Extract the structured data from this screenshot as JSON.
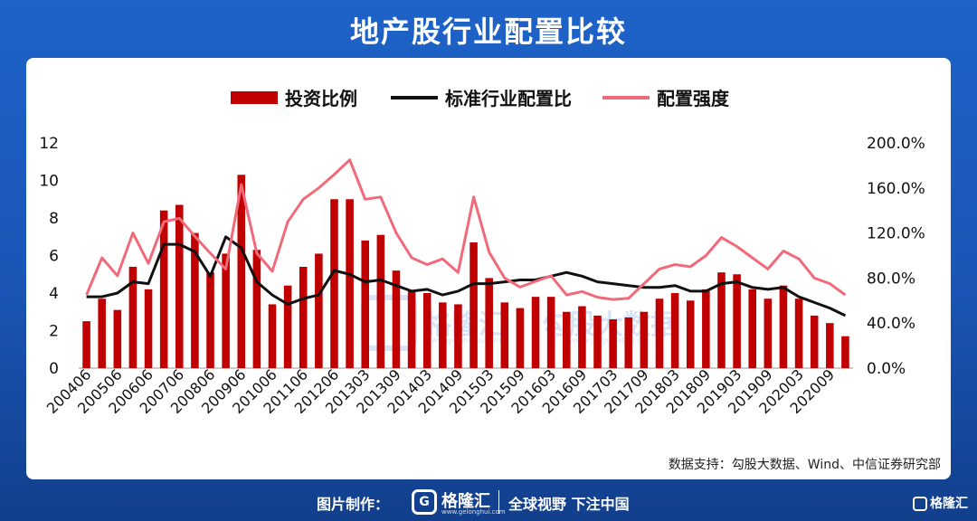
{
  "page": {
    "title": "地产股行业配置比较",
    "source_note": "数据支持：勾股大数据、Wind、中信证券研究部",
    "watermark": {
      "brand": "格隆汇",
      "brand_url": "www.gelonghui.com",
      "product": "勾股大数据",
      "product_url": "www.gogudata.com"
    },
    "footer": {
      "label": "图片制作：",
      "brand": "格隆汇",
      "brand_url": "www.gelonghui.com",
      "slogan": "全球视野 下注中国",
      "corner": "格隆汇"
    }
  },
  "chart_data": {
    "type": "bar",
    "legend": [
      {
        "name": "投资比例",
        "kind": "bar",
        "color": "#c00000"
      },
      {
        "name": "标准行业配置比",
        "kind": "line",
        "color": "#111111"
      },
      {
        "name": "配置强度",
        "kind": "line",
        "color": "#f06a7a"
      }
    ],
    "legend_placement": "top",
    "y_left": {
      "min": 0,
      "max": 12,
      "ticks": [
        "0",
        "2",
        "4",
        "6",
        "8",
        "10",
        "12"
      ]
    },
    "y_right": {
      "min": 0,
      "max": 200,
      "ticks": [
        "0.0%",
        "40.0%",
        "80.0%",
        "120.0%",
        "160.0%",
        "200.0%"
      ]
    },
    "x_tick_labels": [
      "200406",
      "200506",
      "200606",
      "200706",
      "200806",
      "200906",
      "201006",
      "201106",
      "201206",
      "201303",
      "201309",
      "201403",
      "201409",
      "201503",
      "201509",
      "201603",
      "201609",
      "201703",
      "201709",
      "201803",
      "201809",
      "201903",
      "201909",
      "202003",
      "202009"
    ],
    "series": [
      {
        "name": "投资比例",
        "axis": "left",
        "values": [
          2.5,
          3.7,
          3.1,
          5.4,
          4.2,
          8.4,
          8.7,
          7.2,
          5.1,
          6.1,
          10.3,
          6.3,
          3.4,
          4.4,
          5.4,
          6.1,
          9.0,
          9.0,
          6.8,
          7.1,
          5.2,
          4.1,
          4.0,
          3.5,
          3.4,
          6.7,
          4.8,
          3.5,
          3.2,
          3.8,
          3.8,
          3.0,
          3.3,
          2.8,
          2.6,
          2.7,
          3.0,
          3.7,
          4.0,
          3.6,
          4.2,
          5.1,
          5.0,
          4.2,
          3.7,
          4.4,
          3.7,
          2.8,
          2.4,
          1.7
        ]
      },
      {
        "name": "标准行业配置比",
        "axis": "left",
        "values": [
          3.8,
          3.8,
          4.0,
          4.6,
          4.5,
          6.6,
          6.6,
          6.2,
          4.9,
          7.0,
          6.4,
          4.6,
          3.9,
          3.4,
          3.7,
          3.9,
          5.2,
          5.0,
          4.6,
          4.7,
          4.4,
          4.1,
          4.2,
          3.9,
          4.1,
          4.5,
          4.5,
          4.6,
          4.7,
          4.7,
          4.9,
          5.1,
          4.9,
          4.6,
          4.5,
          4.4,
          4.3,
          4.3,
          4.4,
          4.1,
          4.1,
          4.5,
          4.6,
          4.3,
          4.2,
          4.3,
          3.8,
          3.5,
          3.2,
          2.8
        ]
      },
      {
        "name": "配置强度",
        "axis": "right",
        "values": [
          65,
          98,
          82,
          120,
          93,
          130,
          133,
          117,
          102,
          88,
          163,
          102,
          86,
          130,
          150,
          160,
          172,
          185,
          150,
          152,
          120,
          98,
          92,
          97,
          85,
          152,
          103,
          80,
          72,
          77,
          82,
          65,
          68,
          63,
          61,
          62,
          75,
          88,
          92,
          90,
          100,
          116,
          108,
          98,
          88,
          104,
          97,
          80,
          75,
          65
        ]
      }
    ]
  }
}
